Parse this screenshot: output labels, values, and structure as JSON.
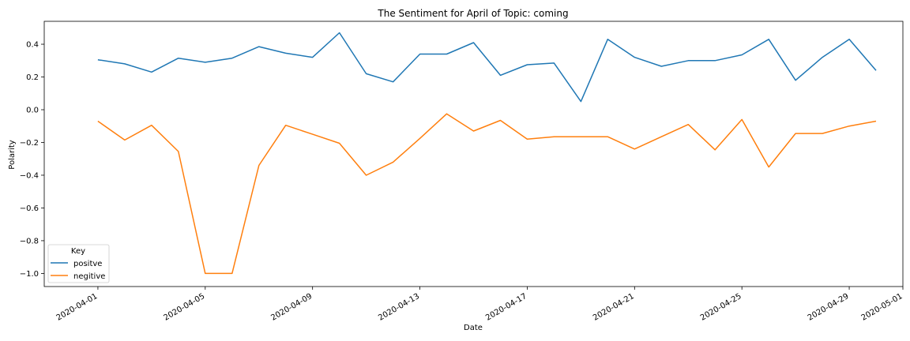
{
  "chart_data": {
    "type": "line",
    "title": "The Sentiment for April of Topic: coming",
    "xlabel": "Date",
    "ylabel": "Polarity",
    "x": [
      "2020-04-01",
      "2020-04-02",
      "2020-04-03",
      "2020-04-04",
      "2020-04-05",
      "2020-04-06",
      "2020-04-07",
      "2020-04-08",
      "2020-04-09",
      "2020-04-10",
      "2020-04-11",
      "2020-04-12",
      "2020-04-13",
      "2020-04-14",
      "2020-04-15",
      "2020-04-16",
      "2020-04-17",
      "2020-04-18",
      "2020-04-19",
      "2020-04-20",
      "2020-04-21",
      "2020-04-22",
      "2020-04-23",
      "2020-04-24",
      "2020-04-25",
      "2020-04-26",
      "2020-04-27",
      "2020-04-28",
      "2020-04-29",
      "2020-04-30"
    ],
    "series": [
      {
        "name": "positve",
        "color": "#1f77b4",
        "values": [
          0.305,
          0.28,
          0.23,
          0.315,
          0.29,
          0.315,
          0.385,
          0.345,
          0.32,
          0.47,
          0.22,
          0.17,
          0.34,
          0.34,
          0.41,
          0.21,
          0.275,
          0.285,
          0.05,
          0.43,
          0.32,
          0.265,
          0.3,
          0.3,
          0.335,
          0.43,
          0.18,
          0.32,
          0.43,
          0.24
        ]
      },
      {
        "name": "negitive",
        "color": "#ff7f0e",
        "values": [
          -0.07,
          -0.185,
          -0.095,
          -0.255,
          -1.0,
          -1.0,
          -0.34,
          -0.095,
          -0.15,
          -0.205,
          -0.4,
          -0.32,
          -0.175,
          -0.025,
          -0.13,
          -0.065,
          -0.18,
          -0.165,
          -0.165,
          -0.165,
          -0.24,
          -0.165,
          -0.09,
          -0.245,
          -0.06,
          -0.35,
          -0.145,
          -0.145,
          -0.1,
          -0.07
        ]
      }
    ],
    "xticks": [
      "2020-04-01",
      "2020-04-05",
      "2020-04-09",
      "2020-04-13",
      "2020-04-17",
      "2020-04-21",
      "2020-04-25",
      "2020-04-29",
      "2020-05-01"
    ],
    "yticks": [
      "0.4",
      "0.2",
      "0.0",
      "−0.2",
      "−0.4",
      "−0.6",
      "−0.8",
      "−1.0"
    ],
    "yticks_values": [
      0.4,
      0.2,
      0.0,
      -0.2,
      -0.4,
      -0.6,
      -0.8,
      -1.0
    ],
    "xlim": [
      "2020-03-30",
      "2020-05-01"
    ],
    "ylim": [
      -1.08,
      0.54
    ],
    "grid": false,
    "legend": {
      "title": "Key",
      "location": "lower-left"
    }
  }
}
